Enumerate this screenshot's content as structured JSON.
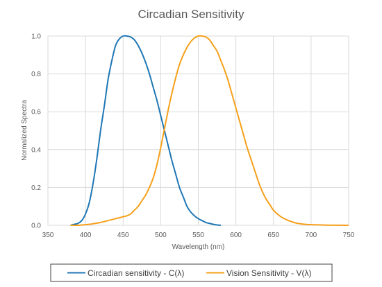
{
  "chart_data": {
    "type": "line",
    "title": "Circadian Sensitivity",
    "xlabel": "Wavelength (nm)",
    "ylabel": "Normalized Spectra",
    "xlim": [
      350,
      750
    ],
    "ylim": [
      0,
      1.0
    ],
    "x_ticks": [
      "350",
      "400",
      "450",
      "500",
      "550",
      "600",
      "650",
      "700",
      "750"
    ],
    "y_ticks": [
      "0.0",
      "0.2",
      "0.4",
      "0.6",
      "0.8",
      "1.0"
    ],
    "grid": true,
    "legend_position": "bottom",
    "series": [
      {
        "name": "Circadian sensitivity - C(λ)",
        "color": "#1f77b4",
        "points": [
          [
            380,
            0.0
          ],
          [
            385,
            0.005
          ],
          [
            390,
            0.01
          ],
          [
            395,
            0.025
          ],
          [
            400,
            0.06
          ],
          [
            405,
            0.12
          ],
          [
            410,
            0.22
          ],
          [
            415,
            0.35
          ],
          [
            420,
            0.5
          ],
          [
            425,
            0.63
          ],
          [
            430,
            0.77
          ],
          [
            435,
            0.87
          ],
          [
            440,
            0.95
          ],
          [
            445,
            0.985
          ],
          [
            450,
            1.0
          ],
          [
            455,
            1.0
          ],
          [
            460,
            0.995
          ],
          [
            465,
            0.98
          ],
          [
            470,
            0.95
          ],
          [
            475,
            0.91
          ],
          [
            480,
            0.86
          ],
          [
            485,
            0.8
          ],
          [
            490,
            0.73
          ],
          [
            495,
            0.66
          ],
          [
            500,
            0.58
          ],
          [
            505,
            0.5
          ],
          [
            510,
            0.42
          ],
          [
            515,
            0.34
          ],
          [
            520,
            0.27
          ],
          [
            525,
            0.2
          ],
          [
            530,
            0.15
          ],
          [
            535,
            0.1
          ],
          [
            540,
            0.07
          ],
          [
            545,
            0.05
          ],
          [
            550,
            0.035
          ],
          [
            555,
            0.025
          ],
          [
            560,
            0.015
          ],
          [
            565,
            0.01
          ],
          [
            570,
            0.005
          ],
          [
            575,
            0.002
          ],
          [
            580,
            0.0
          ]
        ]
      },
      {
        "name": "Vision Sensitivity - V(λ)",
        "color": "#f5a01a",
        "points": [
          [
            380,
            0.0
          ],
          [
            390,
            0.0
          ],
          [
            400,
            0.003
          ],
          [
            410,
            0.008
          ],
          [
            420,
            0.015
          ],
          [
            430,
            0.025
          ],
          [
            440,
            0.035
          ],
          [
            450,
            0.045
          ],
          [
            455,
            0.05
          ],
          [
            460,
            0.06
          ],
          [
            465,
            0.08
          ],
          [
            470,
            0.1
          ],
          [
            475,
            0.13
          ],
          [
            480,
            0.16
          ],
          [
            485,
            0.2
          ],
          [
            490,
            0.25
          ],
          [
            495,
            0.32
          ],
          [
            500,
            0.41
          ],
          [
            505,
            0.51
          ],
          [
            510,
            0.61
          ],
          [
            515,
            0.7
          ],
          [
            520,
            0.78
          ],
          [
            525,
            0.85
          ],
          [
            530,
            0.9
          ],
          [
            535,
            0.94
          ],
          [
            540,
            0.97
          ],
          [
            545,
            0.99
          ],
          [
            550,
            1.0
          ],
          [
            555,
            1.0
          ],
          [
            560,
            0.995
          ],
          [
            565,
            0.98
          ],
          [
            570,
            0.95
          ],
          [
            575,
            0.92
          ],
          [
            580,
            0.87
          ],
          [
            585,
            0.82
          ],
          [
            590,
            0.76
          ],
          [
            595,
            0.69
          ],
          [
            600,
            0.62
          ],
          [
            605,
            0.55
          ],
          [
            610,
            0.48
          ],
          [
            615,
            0.41
          ],
          [
            620,
            0.35
          ],
          [
            625,
            0.29
          ],
          [
            630,
            0.23
          ],
          [
            635,
            0.18
          ],
          [
            640,
            0.14
          ],
          [
            645,
            0.11
          ],
          [
            650,
            0.08
          ],
          [
            660,
            0.045
          ],
          [
            670,
            0.025
          ],
          [
            680,
            0.012
          ],
          [
            690,
            0.006
          ],
          [
            700,
            0.003
          ],
          [
            720,
            0.001
          ],
          [
            750,
            0.0
          ]
        ]
      }
    ]
  }
}
